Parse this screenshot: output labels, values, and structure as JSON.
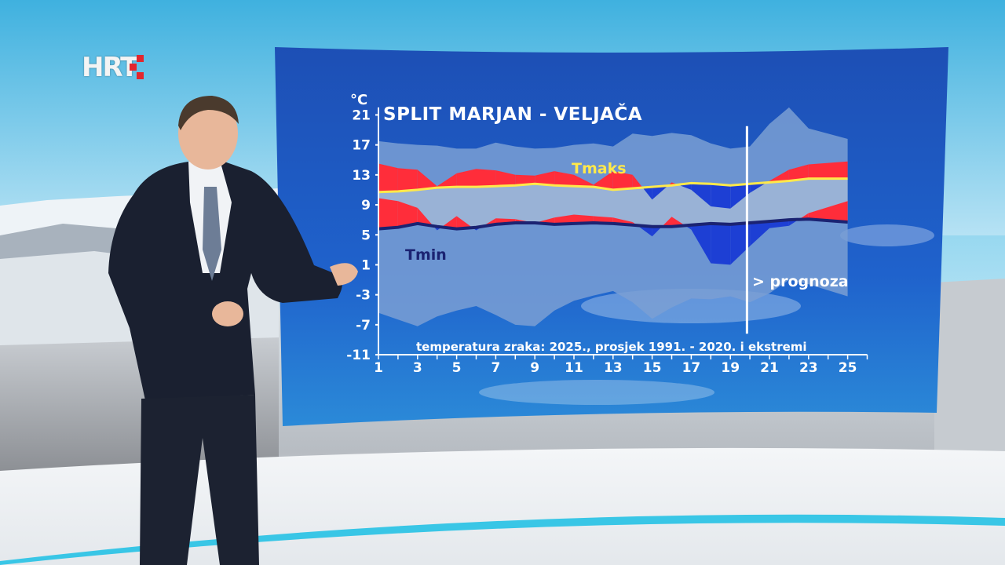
{
  "logo": {
    "text": "HRT"
  },
  "colors": {
    "panel": "#1a55c0",
    "normal_band": "#9fb5d6",
    "extreme_band": "#7a9fd3",
    "above_normal": "#ff2d3a",
    "below_normal": "#1d3fd4",
    "tmax_line": "#ffe94a",
    "tmin_line": "#1b2372",
    "forecast_line": "#ffffff"
  },
  "chart_data": {
    "type": "area",
    "title": "SPLIT MARJAN - VELJAČA",
    "y_unit": "°C",
    "subtitle": "temperatura zraka: 2025., prosjek 1991. - 2020. i ekstremi",
    "forecast_label": "> prognoza",
    "forecast_start_day": 20,
    "x_ticks": [
      1,
      3,
      5,
      7,
      9,
      11,
      13,
      15,
      17,
      19,
      21,
      23,
      25
    ],
    "y_ticks": [
      21,
      17,
      13,
      9,
      5,
      1,
      -3,
      -7,
      -11
    ],
    "ylim": [
      -11,
      22
    ],
    "xlim": [
      1,
      26
    ],
    "days": [
      1,
      2,
      3,
      4,
      5,
      6,
      7,
      8,
      9,
      10,
      11,
      12,
      13,
      14,
      15,
      16,
      17,
      18,
      19,
      20,
      21,
      22,
      23,
      25
    ],
    "series": [
      {
        "name": "Tmaks",
        "values": [
          14.5,
          13.9,
          13.7,
          11.5,
          13.2,
          13.8,
          13.6,
          13.0,
          12.9,
          13.5,
          13.0,
          11.7,
          13.5,
          13.0,
          9.7,
          12.0,
          11.0,
          8.8,
          8.5,
          10.6,
          12.2,
          13.7,
          14.4,
          14.8
        ]
      },
      {
        "name": "Tmin",
        "values": [
          9.9,
          9.5,
          8.6,
          5.6,
          7.5,
          5.6,
          7.2,
          7.1,
          6.6,
          7.3,
          7.7,
          7.5,
          7.3,
          6.7,
          4.8,
          7.4,
          5.7,
          1.2,
          1.0,
          3.5,
          5.9,
          6.2,
          7.9,
          9.5
        ]
      }
    ],
    "normal_tmax": [
      10.7,
      10.8,
      11.0,
      11.3,
      11.4,
      11.4,
      11.5,
      11.6,
      11.8,
      11.6,
      11.5,
      11.4,
      11.0,
      11.2,
      11.4,
      11.6,
      11.9,
      11.8,
      11.6,
      11.8,
      12.0,
      12.2,
      12.5,
      12.5
    ],
    "normal_tmin": [
      5.8,
      6.0,
      6.5,
      6.1,
      5.8,
      6.0,
      6.4,
      6.6,
      6.6,
      6.4,
      6.5,
      6.6,
      6.5,
      6.3,
      6.1,
      6.1,
      6.3,
      6.5,
      6.4,
      6.6,
      6.8,
      7.0,
      7.1,
      6.7
    ],
    "record_max": [
      17.5,
      17.2,
      17.0,
      16.9,
      16.5,
      16.5,
      17.3,
      16.8,
      16.5,
      16.6,
      17.0,
      17.2,
      16.8,
      18.5,
      18.2,
      18.6,
      18.3,
      17.2,
      16.5,
      16.8,
      19.8,
      22.0,
      19.2,
      17.8
    ],
    "record_min": [
      -5.4,
      -6.3,
      -7.2,
      -5.9,
      -5.1,
      -4.5,
      -5.7,
      -7.0,
      -7.2,
      -5.1,
      -3.8,
      -3.1,
      -2.5,
      -4.0,
      -6.2,
      -4.7,
      -3.5,
      -3.6,
      -3.2,
      -4.0,
      -2.8,
      -1.0,
      -1.6,
      -3.2
    ]
  }
}
